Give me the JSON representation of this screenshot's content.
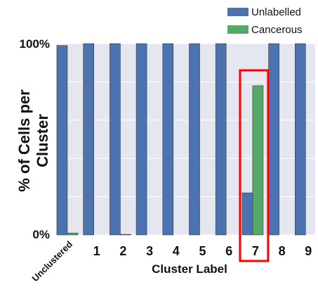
{
  "chart_data": {
    "type": "bar",
    "categories": [
      "Unclustered",
      "1",
      "2",
      "3",
      "4",
      "5",
      "6",
      "7",
      "8",
      "9"
    ],
    "series": [
      {
        "name": "Unlabelled",
        "color": "#4C72B0",
        "values": [
          99,
          100,
          100,
          100,
          100,
          100,
          100,
          22,
          100,
          100
        ]
      },
      {
        "name": "Cancerous",
        "color": "#55A868",
        "values": [
          1,
          0,
          0.3,
          0,
          0,
          0,
          0,
          78,
          0,
          0
        ]
      }
    ],
    "ylim": [
      0,
      100
    ],
    "yticks": [
      "0%",
      "100%"
    ],
    "xlabel": "Cluster Label",
    "ylabel_line1": "% of Cells per",
    "ylabel_line2": "Cluster",
    "grid": true,
    "legend_position": "top-right",
    "highlight_category": "7",
    "highlight_color": "#FF0000",
    "plot_background": "#E5E7F0"
  }
}
